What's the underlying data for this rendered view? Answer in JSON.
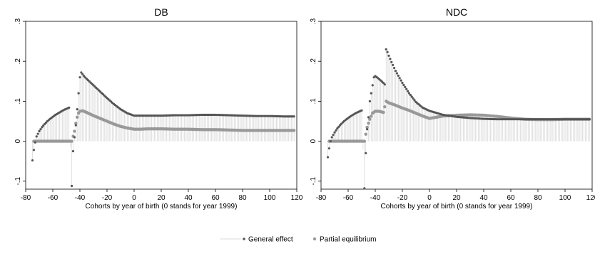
{
  "chart_data": [
    {
      "type": "scatter",
      "title": "DB",
      "xlabel": "Cohorts by year of birth (0 stands for year 1999)",
      "ylabel": "",
      "xlim": [
        -80,
        120
      ],
      "ylim": [
        -0.12,
        0.3
      ],
      "xticks": [
        -80,
        -60,
        -40,
        -20,
        0,
        20,
        40,
        60,
        80,
        100,
        120
      ],
      "yticks": [
        -0.1,
        0,
        0.1,
        0.2,
        0.3
      ],
      "ytick_labels": [
        "-.1",
        "0",
        ".1",
        ".2",
        ".3"
      ],
      "grid": false,
      "spikes_series": "General effect",
      "series": [
        {
          "name": "General effect",
          "color": "#555555",
          "points": [
            [
              -75,
              -0.048
            ],
            [
              -74,
              -0.022
            ],
            [
              -73,
              -0.003
            ],
            [
              -72,
              0.012
            ],
            [
              -70,
              0.025
            ],
            [
              -68,
              0.035
            ],
            [
              -66,
              0.043
            ],
            [
              -64,
              0.05
            ],
            [
              -62,
              0.056
            ],
            [
              -60,
              0.061
            ],
            [
              -58,
              0.066
            ],
            [
              -56,
              0.07
            ],
            [
              -54,
              0.074
            ],
            [
              -52,
              0.078
            ],
            [
              -50,
              0.081
            ],
            [
              -48,
              0.084
            ],
            [
              -46,
              -0.112
            ],
            [
              -45,
              -0.025
            ],
            [
              -44,
              0.01
            ],
            [
              -43,
              0.04
            ],
            [
              -42,
              0.08
            ],
            [
              -41,
              0.12
            ],
            [
              -40,
              0.16
            ],
            [
              -39,
              0.172
            ],
            [
              -37,
              0.163
            ],
            [
              -35,
              0.156
            ],
            [
              -30,
              0.14
            ],
            [
              -25,
              0.124
            ],
            [
              -20,
              0.108
            ],
            [
              -15,
              0.093
            ],
            [
              -10,
              0.08
            ],
            [
              -5,
              0.07
            ],
            [
              0,
              0.064
            ],
            [
              5,
              0.064
            ],
            [
              10,
              0.064
            ],
            [
              20,
              0.064
            ],
            [
              30,
              0.065
            ],
            [
              40,
              0.065
            ],
            [
              50,
              0.066
            ],
            [
              60,
              0.066
            ],
            [
              70,
              0.065
            ],
            [
              80,
              0.064
            ],
            [
              90,
              0.063
            ],
            [
              100,
              0.063
            ],
            [
              110,
              0.062
            ],
            [
              118,
              0.062
            ]
          ]
        },
        {
          "name": "Partial equilibrium",
          "color": "#999999",
          "points": [
            [
              -74,
              0
            ],
            [
              -72,
              0
            ],
            [
              -70,
              0
            ],
            [
              -68,
              0
            ],
            [
              -66,
              0
            ],
            [
              -64,
              0
            ],
            [
              -62,
              0
            ],
            [
              -60,
              0
            ],
            [
              -58,
              0
            ],
            [
              -56,
              0
            ],
            [
              -54,
              0
            ],
            [
              -52,
              0
            ],
            [
              -50,
              0
            ],
            [
              -48,
              0
            ],
            [
              -46,
              0
            ],
            [
              -44,
              0.025
            ],
            [
              -43,
              0.045
            ],
            [
              -42,
              0.06
            ],
            [
              -41,
              0.07
            ],
            [
              -40,
              0.075
            ],
            [
              -38,
              0.076
            ],
            [
              -35,
              0.072
            ],
            [
              -30,
              0.064
            ],
            [
              -25,
              0.057
            ],
            [
              -20,
              0.05
            ],
            [
              -15,
              0.043
            ],
            [
              -10,
              0.037
            ],
            [
              -5,
              0.033
            ],
            [
              0,
              0.03
            ],
            [
              5,
              0.03
            ],
            [
              10,
              0.031
            ],
            [
              20,
              0.031
            ],
            [
              30,
              0.03
            ],
            [
              40,
              0.03
            ],
            [
              50,
              0.029
            ],
            [
              60,
              0.029
            ],
            [
              70,
              0.028
            ],
            [
              80,
              0.027
            ],
            [
              90,
              0.027
            ],
            [
              100,
              0.027
            ],
            [
              110,
              0.027
            ],
            [
              118,
              0.027
            ]
          ]
        }
      ]
    },
    {
      "type": "scatter",
      "title": "NDC",
      "xlabel": "Cohorts by year of birth (0 stands for year 1999)",
      "ylabel": "",
      "xlim": [
        -80,
        120
      ],
      "ylim": [
        -0.12,
        0.3
      ],
      "xticks": [
        -80,
        -60,
        -40,
        -20,
        0,
        20,
        40,
        60,
        80,
        100,
        120
      ],
      "yticks": [
        -0.1,
        0,
        0.1,
        0.2,
        0.3
      ],
      "ytick_labels": [
        "-.1",
        "0",
        ".1",
        ".2",
        ".3"
      ],
      "grid": false,
      "spikes_series": "General effect",
      "series": [
        {
          "name": "General effect",
          "color": "#555555",
          "points": [
            [
              -75,
              -0.04
            ],
            [
              -74,
              -0.018
            ],
            [
              -73,
              0
            ],
            [
              -72,
              0.01
            ],
            [
              -70,
              0.022
            ],
            [
              -68,
              0.032
            ],
            [
              -66,
              0.04
            ],
            [
              -64,
              0.047
            ],
            [
              -62,
              0.053
            ],
            [
              -60,
              0.058
            ],
            [
              -58,
              0.063
            ],
            [
              -56,
              0.067
            ],
            [
              -54,
              0.071
            ],
            [
              -52,
              0.074
            ],
            [
              -50,
              0.077
            ],
            [
              -48,
              -0.118
            ],
            [
              -47,
              -0.03
            ],
            [
              -46,
              0.03
            ],
            [
              -45,
              0.06
            ],
            [
              -44,
              0.1
            ],
            [
              -43,
              0.12
            ],
            [
              -42,
              0.14
            ],
            [
              -41,
              0.16
            ],
            [
              -40,
              0.163
            ],
            [
              -38,
              0.158
            ],
            [
              -36,
              0.152
            ],
            [
              -34,
              0.146
            ],
            [
              -33,
              0.142
            ],
            [
              -32,
              0.23
            ],
            [
              -31,
              0.223
            ],
            [
              -30,
              0.214
            ],
            [
              -28,
              0.198
            ],
            [
              -25,
              0.176
            ],
            [
              -20,
              0.146
            ],
            [
              -15,
              0.12
            ],
            [
              -10,
              0.098
            ],
            [
              -5,
              0.084
            ],
            [
              0,
              0.076
            ],
            [
              5,
              0.071
            ],
            [
              10,
              0.066
            ],
            [
              20,
              0.061
            ],
            [
              30,
              0.058
            ],
            [
              40,
              0.056
            ],
            [
              50,
              0.055
            ],
            [
              60,
              0.055
            ],
            [
              70,
              0.055
            ],
            [
              80,
              0.055
            ],
            [
              90,
              0.055
            ],
            [
              100,
              0.055
            ],
            [
              110,
              0.055
            ],
            [
              118,
              0.055
            ]
          ]
        },
        {
          "name": "Partial equilibrium",
          "color": "#999999",
          "points": [
            [
              -74,
              0
            ],
            [
              -72,
              0
            ],
            [
              -70,
              0
            ],
            [
              -68,
              0
            ],
            [
              -66,
              0
            ],
            [
              -64,
              0
            ],
            [
              -62,
              0
            ],
            [
              -60,
              0
            ],
            [
              -58,
              0
            ],
            [
              -56,
              0
            ],
            [
              -54,
              0
            ],
            [
              -52,
              0
            ],
            [
              -50,
              0
            ],
            [
              -48,
              0
            ],
            [
              -46,
              0.035
            ],
            [
              -44,
              0.055
            ],
            [
              -42,
              0.07
            ],
            [
              -40,
              0.075
            ],
            [
              -38,
              0.075
            ],
            [
              -36,
              0.074
            ],
            [
              -34,
              0.072
            ],
            [
              -32,
              0.1
            ],
            [
              -30,
              0.096
            ],
            [
              -25,
              0.09
            ],
            [
              -20,
              0.083
            ],
            [
              -15,
              0.077
            ],
            [
              -10,
              0.07
            ],
            [
              -5,
              0.063
            ],
            [
              0,
              0.057
            ],
            [
              5,
              0.06
            ],
            [
              10,
              0.063
            ],
            [
              20,
              0.065
            ],
            [
              30,
              0.066
            ],
            [
              40,
              0.065
            ],
            [
              50,
              0.062
            ],
            [
              60,
              0.058
            ],
            [
              70,
              0.055
            ],
            [
              80,
              0.054
            ],
            [
              90,
              0.054
            ],
            [
              100,
              0.055
            ],
            [
              110,
              0.055
            ],
            [
              118,
              0.055
            ]
          ]
        }
      ]
    }
  ],
  "legend": {
    "position": "bottom",
    "items": [
      {
        "label": "General effect",
        "color": "#555555",
        "marker": "spike-dot"
      },
      {
        "label": "Partial equilibrium",
        "color": "#999999",
        "marker": "dot"
      }
    ]
  }
}
